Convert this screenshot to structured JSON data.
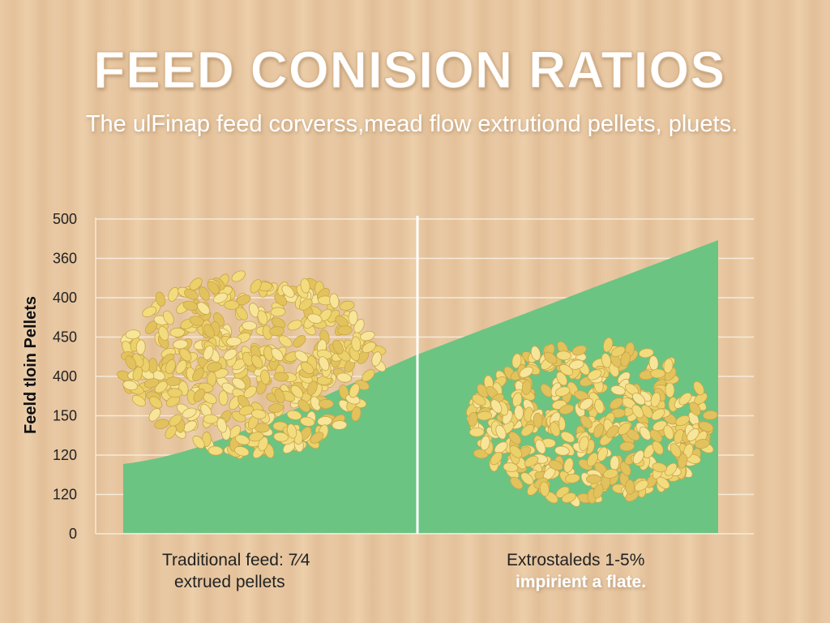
{
  "header": {
    "title": "FEED CONISION RATIOS",
    "subtitle": "The ulFinap feed corverss,mead flow extrutiond pellets, pluets."
  },
  "axis": {
    "label": "Feeld tloin Pellets",
    "ticks": [
      "500",
      "360",
      "400",
      "450",
      "400",
      "150",
      "120",
      "120",
      "0"
    ]
  },
  "captions": {
    "left": [
      "Traditional feed: 7⁄4",
      "extrued pellets"
    ],
    "right": [
      "Extrostaleds 1-5%",
      "impirient a flate."
    ]
  }
}
